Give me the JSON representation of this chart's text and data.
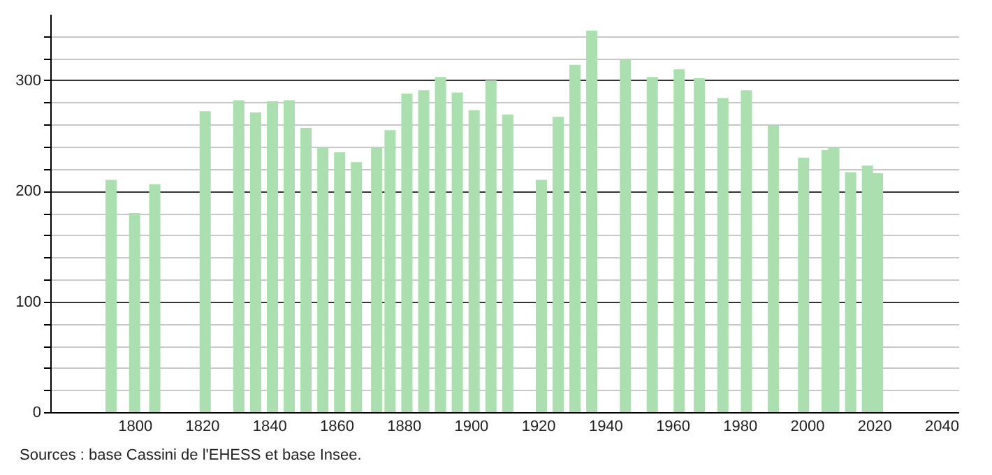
{
  "chart_data": {
    "type": "bar",
    "x": [
      1793,
      1800,
      1806,
      1821,
      1831,
      1836,
      1841,
      1846,
      1851,
      1856,
      1861,
      1866,
      1872,
      1876,
      1881,
      1886,
      1891,
      1896,
      1901,
      1906,
      1911,
      1921,
      1926,
      1931,
      1936,
      1946,
      1954,
      1962,
      1968,
      1975,
      1982,
      1990,
      1999,
      2006,
      2008,
      2013,
      2018,
      2021
    ],
    "values": [
      210,
      180,
      206,
      272,
      282,
      271,
      281,
      282,
      257,
      239,
      235,
      226,
      239,
      255,
      288,
      291,
      303,
      289,
      273,
      300,
      269,
      210,
      267,
      314,
      345,
      319,
      303,
      310,
      302,
      284,
      291,
      259,
      230,
      237,
      239,
      217,
      223,
      216
    ],
    "color": "#abdfb0",
    "xlim": [
      1777,
      2043
    ],
    "xticks": [
      1800,
      1820,
      1840,
      1860,
      1880,
      1900,
      1920,
      1940,
      1960,
      1980,
      2000,
      2020,
      2040
    ],
    "ylim": [
      0,
      360
    ],
    "yticks": [
      0,
      {
        "value": 20,
        "label": null
      },
      {
        "value": 40,
        "label": null
      },
      {
        "value": 60,
        "label": null
      },
      {
        "value": 80,
        "label": null
      },
      100,
      {
        "value": 120,
        "label": null
      },
      {
        "value": 140,
        "label": null
      },
      {
        "value": 160,
        "label": null
      },
      {
        "value": 180,
        "label": null
      },
      200,
      {
        "value": 220,
        "label": null
      },
      {
        "value": 240,
        "label": null
      },
      {
        "value": 260,
        "label": null
      },
      {
        "value": 280,
        "label": null
      },
      300,
      {
        "value": 320,
        "label": null
      },
      {
        "value": 340,
        "label": null
      }
    ],
    "grid": "y",
    "annotations": [
      "Sources : base Cassini de l'EHESS et base Insee."
    ]
  }
}
